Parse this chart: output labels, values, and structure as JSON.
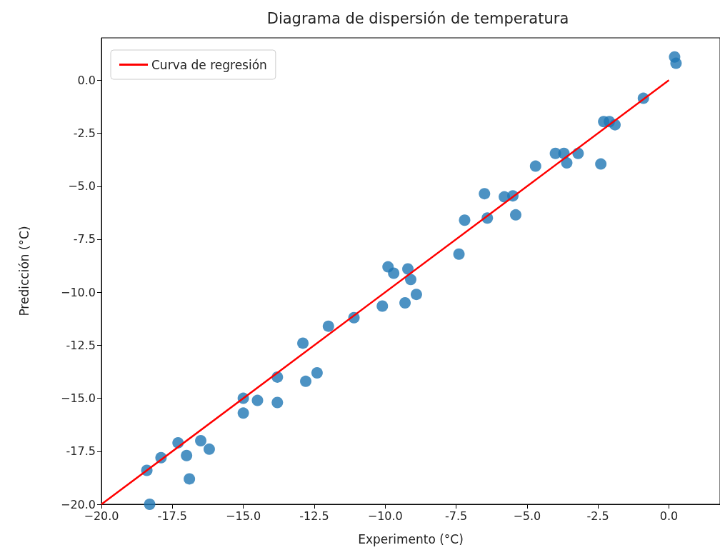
{
  "chart_data": {
    "type": "scatter",
    "title": "Diagrama de dispersión de temperatura",
    "xlabel": "Experimento (°C)",
    "ylabel": "Predicción (°C)",
    "xlim": [
      -20,
      1.8
    ],
    "ylim": [
      -20,
      2.0
    ],
    "xticks": [
      {
        "value": -20,
        "label": "−20.0"
      },
      -17.5,
      {
        "value": -15,
        "label": "−15.0"
      },
      -12.5,
      {
        "value": -10,
        "label": "−10.0"
      },
      -7.5,
      {
        "value": -5,
        "label": "−5.0"
      },
      -2.5,
      {
        "value": 0,
        "label": "0.0"
      }
    ],
    "yticks": [
      {
        "value": -20,
        "label": "−20.0"
      },
      -17.5,
      {
        "value": -15,
        "label": "−15.0"
      },
      -12.5,
      {
        "value": -10,
        "label": "−10.0"
      },
      -7.5,
      {
        "value": -5,
        "label": "−5.0"
      },
      -2.5,
      {
        "value": 0,
        "label": "0.0"
      }
    ],
    "grid": false,
    "legend": "top left",
    "series": [
      {
        "color": "#1f77b4",
        "marker": "circle",
        "x": [
          -18.4,
          -17.9,
          -17.3,
          -17.0,
          -16.9,
          -16.5,
          -16.2,
          -18.3,
          -15.0,
          -15.0,
          -14.5,
          -13.8,
          -13.8,
          -12.9,
          -12.8,
          -12.4,
          -12.0,
          -11.1,
          -10.1,
          -9.9,
          -9.7,
          -9.3,
          -9.2,
          -9.1,
          -8.9,
          -7.4,
          -7.2,
          -6.5,
          -6.4,
          -5.8,
          -5.5,
          -5.4,
          -4.7,
          -4.0,
          -3.7,
          -3.6,
          -3.2,
          -2.4,
          -2.3,
          -2.1,
          -1.9,
          -0.9,
          0.2,
          0.25
        ],
        "values": [
          -18.4,
          -17.8,
          -17.1,
          -17.7,
          -18.8,
          -17.0,
          -17.4,
          -20.0,
          -15.0,
          -15.7,
          -15.1,
          -14.0,
          -15.2,
          -12.4,
          -14.2,
          -13.8,
          -11.6,
          -11.2,
          -10.65,
          -8.8,
          -9.1,
          -10.5,
          -8.9,
          -9.4,
          -10.1,
          -8.2,
          -6.6,
          -5.35,
          -6.5,
          -5.5,
          -5.45,
          -6.35,
          -4.05,
          -3.45,
          -3.45,
          -3.9,
          -3.45,
          -3.95,
          -1.95,
          -1.95,
          -2.1,
          -0.85,
          1.1,
          0.8
        ]
      },
      {
        "type": "line",
        "name": "Curva de regresión",
        "color": "#ff0000",
        "marker": "none",
        "line_style": "solid",
        "x": [
          -20,
          0
        ],
        "values": [
          -20,
          0
        ]
      }
    ]
  }
}
